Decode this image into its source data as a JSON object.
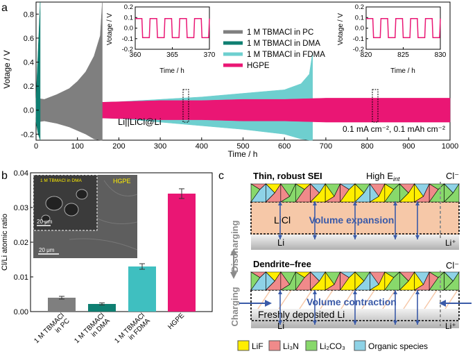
{
  "panels": {
    "a": "a",
    "b": "b",
    "c": "c"
  },
  "chart_data": [
    {
      "id": "a",
      "type": "line",
      "xlabel": "Time / h",
      "ylabel": "Votage / V",
      "xlim": [
        0,
        1000
      ],
      "ylim": [
        -0.25,
        0.9
      ],
      "xticks": [
        "0",
        "100",
        "200",
        "300",
        "400",
        "500",
        "600",
        "700",
        "800",
        "900",
        "1000"
      ],
      "yticks": [
        "-0.2",
        "0.0",
        "0.2",
        "0.4",
        "0.6",
        "0.8"
      ],
      "legend": [
        "1 M TBMACl in PC",
        "1 M TBMACl in DMA",
        "1 M TBMACl in FDMA",
        "HGPE"
      ],
      "series": [
        {
          "name": "1 M TBMACl in PC",
          "color": "#7f7f7f",
          "x": [
            0,
            20,
            50,
            80,
            100,
            120,
            140,
            155,
            160
          ],
          "y_upper": [
            0.1,
            0.09,
            0.13,
            0.18,
            0.24,
            0.32,
            0.45,
            0.62,
            0.9
          ],
          "y_lower": [
            -0.1,
            -0.09,
            -0.11,
            -0.14,
            -0.17,
            -0.2,
            -0.24,
            -0.25,
            -0.25
          ]
        },
        {
          "name": "1 M TBMACl in DMA",
          "color": "#0f7f72",
          "x": [
            0,
            5,
            10
          ],
          "y_upper": [
            0.1,
            0.5,
            0.9
          ],
          "y_lower": [
            -0.1,
            -0.2,
            -0.25
          ]
        },
        {
          "name": "1 M TBMACl in FDMA",
          "color": "#6ecfcf",
          "x": [
            0,
            100,
            200,
            300,
            400,
            500,
            600,
            640,
            660,
            668
          ],
          "y_upper": [
            0.06,
            0.06,
            0.07,
            0.09,
            0.11,
            0.14,
            0.17,
            0.22,
            0.3,
            0.48
          ],
          "y_lower": [
            -0.06,
            -0.06,
            -0.07,
            -0.1,
            -0.13,
            -0.16,
            -0.2,
            -0.24,
            -0.25,
            -0.25
          ]
        },
        {
          "name": "HGPE",
          "color": "#ea1674",
          "x": [
            0,
            100,
            200,
            300,
            400,
            500,
            600,
            700,
            800,
            900,
            1000
          ],
          "y_upper": [
            0.05,
            0.06,
            0.07,
            0.08,
            0.08,
            0.09,
            0.09,
            0.1,
            0.1,
            0.1,
            0.1
          ],
          "y_lower": [
            -0.05,
            -0.06,
            -0.07,
            -0.08,
            -0.08,
            -0.09,
            -0.09,
            -0.1,
            -0.1,
            -0.1,
            -0.1
          ]
        }
      ],
      "annotations": [
        "Li||LiCl@Li",
        "0.1 mA cm⁻², 0.1 mAh cm⁻²"
      ],
      "insets": [
        {
          "xlabel": "Time / h",
          "ylabel": "Votage / V",
          "xlim": [
            360,
            370
          ],
          "ylim": [
            -0.2,
            0.2
          ],
          "xticks": [
            "360",
            "365",
            "370"
          ],
          "yticks": [
            "-0.2",
            "-0.1",
            "0.0",
            "0.1",
            "0.2"
          ],
          "cycle_period_h": 2,
          "high": 0.09,
          "low": -0.09,
          "color": "#ea1674"
        },
        {
          "xlabel": "Time / h",
          "ylabel": "Votage / V",
          "xlim": [
            820,
            830
          ],
          "ylim": [
            -0.2,
            0.2
          ],
          "xticks": [
            "820",
            "825",
            "830"
          ],
          "yticks": [
            "-0.2",
            "-0.1",
            "0.0",
            "0.1",
            "0.2"
          ],
          "cycle_period_h": 2,
          "high": 0.09,
          "low": -0.09,
          "color": "#ea1674"
        }
      ],
      "highlight_x": [
        365,
        825
      ]
    },
    {
      "id": "b",
      "type": "bar",
      "ylabel": "Cl/Li atomic ratio",
      "ylim": [
        0,
        0.04
      ],
      "yticks": [
        "0.00",
        "0.01",
        "0.02",
        "0.03",
        "0.04"
      ],
      "categories": [
        "1 M TBMACl\nin PC",
        "1 M TBMACl\nin DMA",
        "1 M TBMACl\nin FDMA",
        "HGPE"
      ],
      "values": [
        0.004,
        0.0022,
        0.013,
        0.034
      ],
      "errors": [
        0.0004,
        0.0003,
        0.0008,
        0.0014
      ],
      "colors": [
        "#7f7f7f",
        "#0f7f72",
        "#3fbfc0",
        "#ea1674"
      ],
      "inset_labels": {
        "left": "1 M TBMACl in DMA",
        "right": "HGPE",
        "scale_small": "20 μm",
        "scale_large": "20 μm"
      }
    }
  ],
  "diagram": {
    "top_title": "Thin, robust SEI",
    "top_energy": "High E",
    "top_energy_sub": "int",
    "top_ion": "Cl⁻",
    "top_layer": "LiCl",
    "top_center": "Volume expansion",
    "top_li": "Li",
    "top_liplus": "Li⁺",
    "side_discharging": "Discharging",
    "side_charging": "Charging",
    "bottom_title": "Dendrite–free",
    "bottom_ion": "Cl⁻",
    "bottom_center": "Volume contraction",
    "bottom_deposit": "Freshly deposited Li",
    "bottom_li": "Li",
    "bottom_liplus": "Li⁺",
    "legend": [
      {
        "label": "LiF",
        "color": "#ffee00"
      },
      {
        "label": "Li₃N",
        "color": "#f08a8a"
      },
      {
        "label": "Li₂CO₃",
        "color": "#88d86b"
      },
      {
        "label": "Organic species",
        "color": "#8ed2e6"
      }
    ]
  }
}
